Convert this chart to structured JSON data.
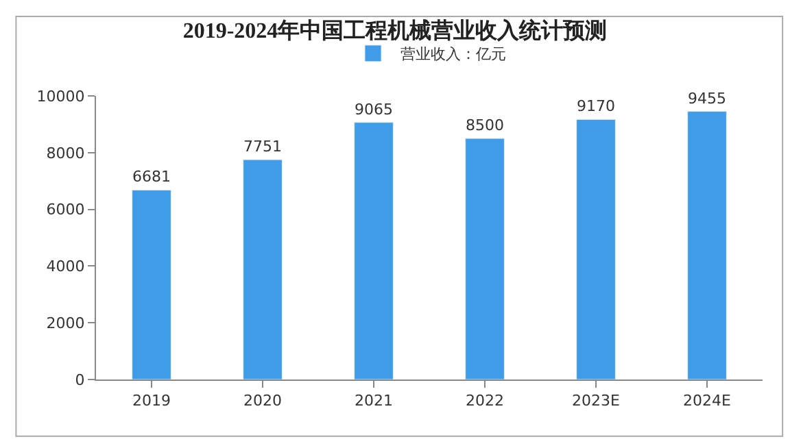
{
  "chart_data": {
    "type": "bar",
    "title": "2019-2024年中国工程机械营业收入统计预测",
    "categories": [
      "2019",
      "2020",
      "2021",
      "2022",
      "2023E",
      "2024E"
    ],
    "series": [
      {
        "name": "营业收入：亿元",
        "color": "#3f9ce8",
        "values": [
          6681,
          7751,
          9065,
          8500,
          9170,
          9455
        ]
      }
    ],
    "ylim": [
      0,
      10000
    ],
    "yticks": [
      0,
      2000,
      4000,
      6000,
      8000,
      10000
    ],
    "data_labels": true,
    "grid": false,
    "legend": "top"
  }
}
